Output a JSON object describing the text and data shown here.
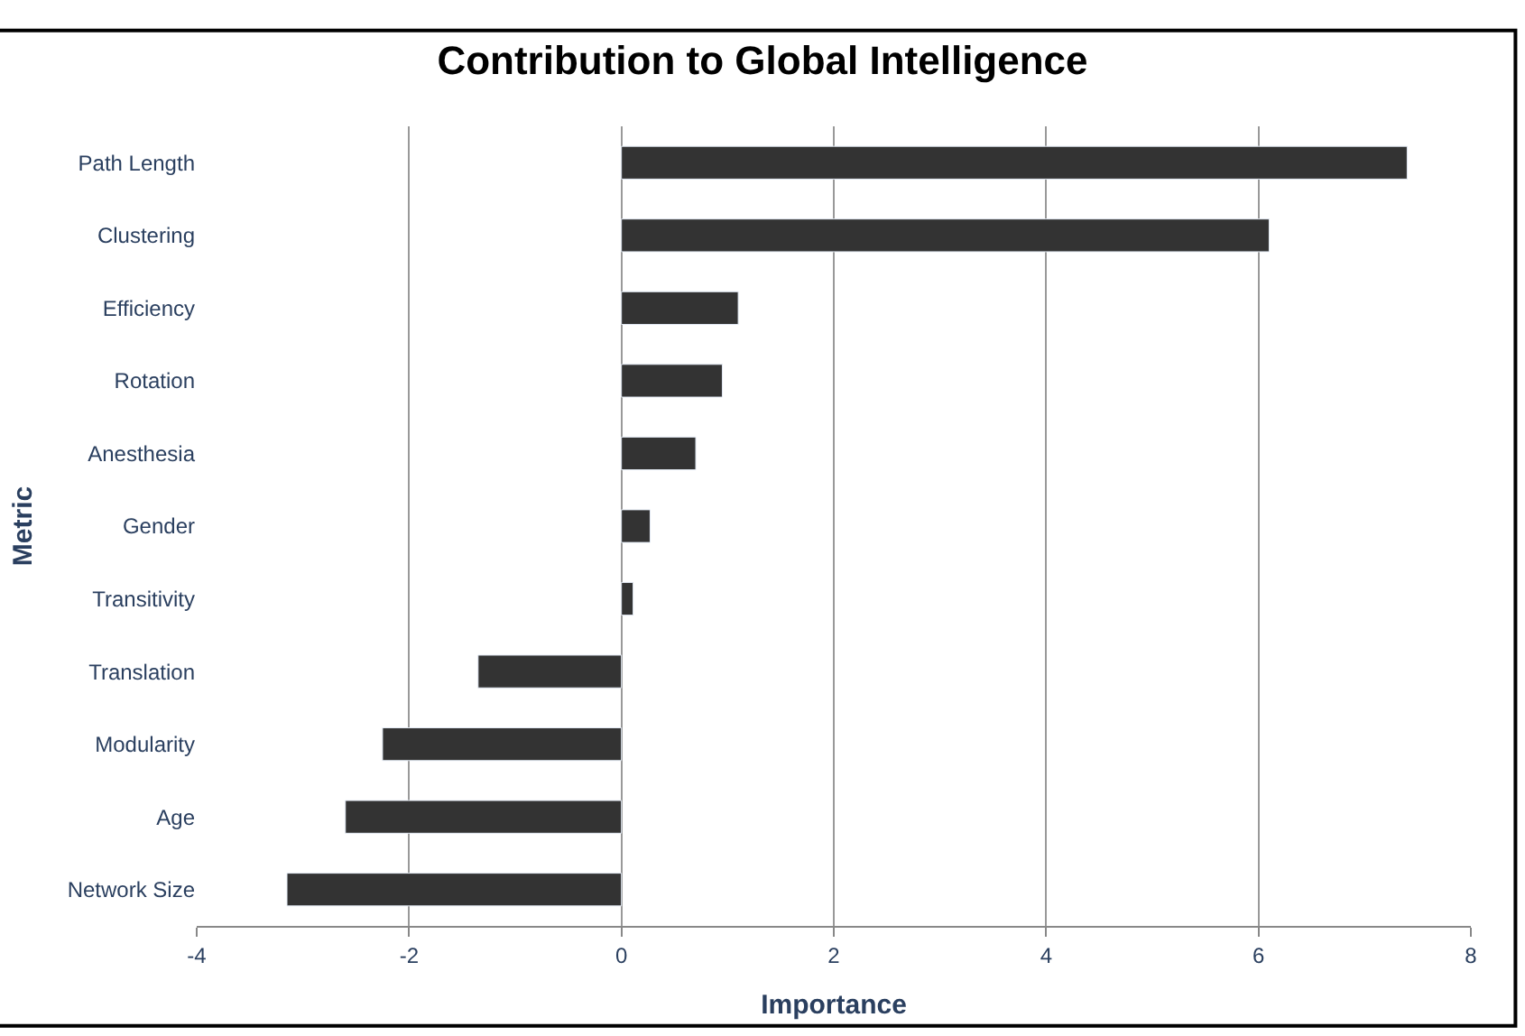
{
  "chart_data": {
    "type": "bar",
    "orientation": "horizontal",
    "title": "Contribution to Global Intelligence",
    "xlabel": "Importance",
    "ylabel": "Metric",
    "categories": [
      "Path Length",
      "Clustering",
      "Efficiency",
      "Rotation",
      "Anesthesia",
      "Gender",
      "Transitivity",
      "Translation",
      "Modularity",
      "Age",
      "Network Size"
    ],
    "values": [
      7.4,
      6.1,
      1.1,
      0.95,
      0.7,
      0.27,
      0.11,
      -1.35,
      -2.25,
      -2.6,
      -3.15
    ],
    "color": "#333333",
    "xlim": [
      -4,
      8
    ],
    "xticks": [
      -4,
      -2,
      0,
      2,
      4,
      6,
      8
    ],
    "grid": "x"
  }
}
